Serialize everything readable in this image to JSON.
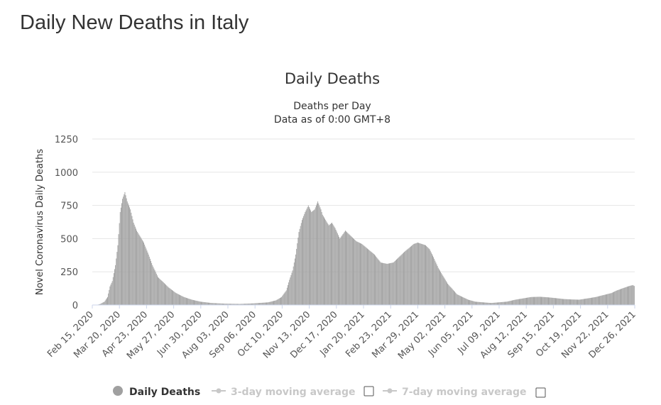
{
  "page": {
    "title": "Daily New Deaths in Italy"
  },
  "colors": {
    "bar": "#a0a0a0",
    "grid": "#e6e6e6",
    "axis": "#ccd6eb",
    "legend_inactive": "#c8c8c8"
  },
  "legend": {
    "items": [
      {
        "label": "Daily Deaths",
        "active": true,
        "icon": "filled-circle"
      },
      {
        "label": "3-day moving average",
        "active": false,
        "icon": "line-marker"
      },
      {
        "label": "7-day moving average",
        "active": false,
        "icon": "line-marker"
      }
    ]
  },
  "chart_data": {
    "type": "bar",
    "title": "Daily Deaths",
    "subtitle": [
      "Deaths per Day",
      "Data as of 0:00 GMT+8"
    ],
    "ylabel": "Novel Coronavirus Daily Deaths",
    "xlabel": "",
    "ylim": [
      0,
      1250
    ],
    "yticks": [
      0,
      250,
      500,
      750,
      1000,
      1250
    ],
    "x_start": "2020-02-15",
    "x_end": "2022-01-04",
    "xticks": [
      "Feb 15, 2020",
      "Mar 20, 2020",
      "Apr 23, 2020",
      "May 27, 2020",
      "Jun 30, 2020",
      "Aug 03, 2020",
      "Sep 06, 2020",
      "Oct 10, 2020",
      "Nov 13, 2020",
      "Dec 17, 2020",
      "Jan 20, 2021",
      "Feb 23, 2021",
      "Mar 29, 2021",
      "May 02, 2021",
      "Jun 05, 2021",
      "Jul 09, 2021",
      "Aug 12, 2021",
      "Sep 15, 2021",
      "Oct 19, 2021",
      "Nov 22, 2021",
      "Dec 26, 2021"
    ],
    "grid": true,
    "legend_position": "bottom",
    "series": [
      {
        "name": "Daily Deaths",
        "x": [
          "2020-02-15",
          "2020-02-21",
          "2020-02-25",
          "2020-03-01",
          "2020-03-05",
          "2020-03-08",
          "2020-03-11",
          "2020-03-15",
          "2020-03-18",
          "2020-03-21",
          "2020-03-24",
          "2020-03-27",
          "2020-03-30",
          "2020-04-03",
          "2020-04-07",
          "2020-04-11",
          "2020-04-15",
          "2020-04-20",
          "2020-04-26",
          "2020-05-01",
          "2020-05-08",
          "2020-05-15",
          "2020-05-22",
          "2020-05-31",
          "2020-06-10",
          "2020-06-20",
          "2020-07-01",
          "2020-07-15",
          "2020-08-01",
          "2020-08-20",
          "2020-09-06",
          "2020-09-25",
          "2020-10-05",
          "2020-10-12",
          "2020-10-18",
          "2020-10-22",
          "2020-10-26",
          "2020-10-30",
          "2020-11-03",
          "2020-11-07",
          "2020-11-11",
          "2020-11-15",
          "2020-11-19",
          "2020-11-23",
          "2020-11-27",
          "2020-12-01",
          "2020-12-03",
          "2020-12-07",
          "2020-12-11",
          "2020-12-15",
          "2020-12-19",
          "2020-12-25",
          "2021-01-01",
          "2021-01-08",
          "2021-01-15",
          "2021-01-22",
          "2021-01-30",
          "2021-02-07",
          "2021-02-15",
          "2021-02-23",
          "2021-03-03",
          "2021-03-10",
          "2021-03-17",
          "2021-03-23",
          "2021-03-29",
          "2021-04-03",
          "2021-04-08",
          "2021-04-13",
          "2021-04-18",
          "2021-04-23",
          "2021-04-29",
          "2021-05-05",
          "2021-05-11",
          "2021-05-17",
          "2021-05-23",
          "2021-05-30",
          "2021-06-06",
          "2021-06-15",
          "2021-06-25",
          "2021-07-05",
          "2021-07-15",
          "2021-07-25",
          "2021-08-05",
          "2021-08-15",
          "2021-08-25",
          "2021-09-05",
          "2021-09-15",
          "2021-09-25",
          "2021-10-05",
          "2021-10-15",
          "2021-10-25",
          "2021-11-05",
          "2021-11-15",
          "2021-11-25",
          "2021-12-05",
          "2021-12-12",
          "2021-12-19",
          "2021-12-26",
          "2022-01-01",
          "2022-01-04"
        ],
        "values": [
          0,
          2,
          8,
          25,
          60,
          140,
          180,
          300,
          450,
          700,
          800,
          850,
          780,
          720,
          620,
          560,
          520,
          470,
          380,
          300,
          210,
          170,
          130,
          90,
          60,
          40,
          25,
          15,
          10,
          8,
          12,
          20,
          35,
          60,
          110,
          190,
          260,
          380,
          550,
          640,
          700,
          750,
          700,
          720,
          780,
          720,
          680,
          640,
          600,
          620,
          580,
          500,
          560,
          520,
          480,
          460,
          420,
          380,
          320,
          310,
          320,
          360,
          400,
          430,
          460,
          470,
          460,
          450,
          420,
          360,
          280,
          220,
          160,
          120,
          80,
          60,
          40,
          25,
          20,
          15,
          20,
          25,
          40,
          50,
          60,
          62,
          58,
          52,
          45,
          42,
          40,
          50,
          60,
          75,
          90,
          110,
          125,
          140,
          150,
          140
        ]
      }
    ]
  }
}
